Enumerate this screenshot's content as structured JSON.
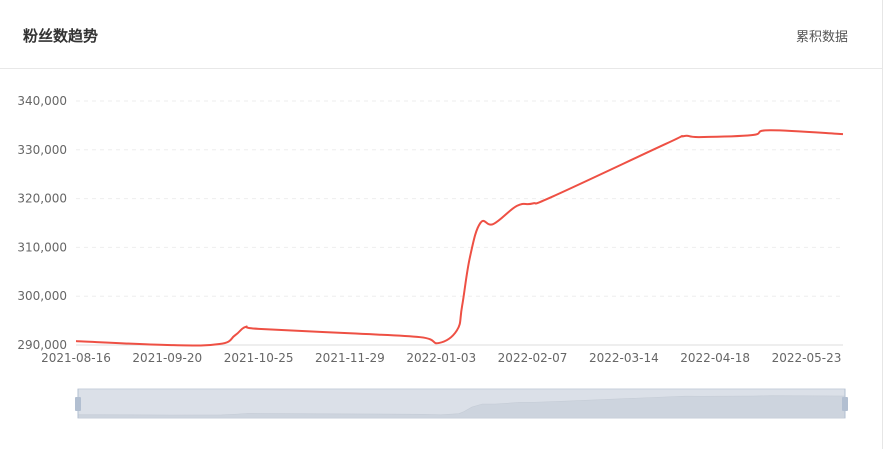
{
  "header": {
    "title": "粉丝数趋势",
    "link_label": "累积数据"
  },
  "colors": {
    "line": "#ee5044",
    "grid": "#eeeeee",
    "slider_bg": "#dbe0e8",
    "slider_area": "#cdd4de"
  },
  "chart_data": {
    "type": "line",
    "title": "",
    "xlabel": "",
    "ylabel": "",
    "ylim": [
      290000,
      340000
    ],
    "yticks": [
      "290,000",
      "300,000",
      "310,000",
      "320,000",
      "330,000",
      "340,000"
    ],
    "xticks": [
      "2021-08-16",
      "2021-09-20",
      "2021-10-25",
      "2021-11-29",
      "2022-01-03",
      "2022-02-07",
      "2022-03-14",
      "2022-04-18",
      "2022-05-23"
    ],
    "grid": true,
    "smooth": true,
    "has_datazoom_slider": true,
    "series": [
      {
        "x": [
          "2021-08-16",
          "2021-09-20",
          "2021-10-10",
          "2021-10-16",
          "2021-10-20",
          "2021-10-25",
          "2021-11-29",
          "2021-12-26",
          "2022-01-02",
          "2022-01-09",
          "2022-01-11",
          "2022-01-14",
          "2022-01-18",
          "2022-01-23",
          "2022-02-01",
          "2022-02-07",
          "2022-02-15",
          "2022-03-30",
          "2022-04-06",
          "2022-04-12",
          "2022-05-02",
          "2022-05-09",
          "2022-06-06"
        ],
        "values": [
          290800,
          290000,
          290200,
          292000,
          293700,
          293300,
          292400,
          291600,
          290400,
          293000,
          298000,
          308000,
          315000,
          314800,
          318500,
          319000,
          320500,
          331200,
          332800,
          332600,
          333000,
          334000,
          333200
        ]
      }
    ]
  }
}
